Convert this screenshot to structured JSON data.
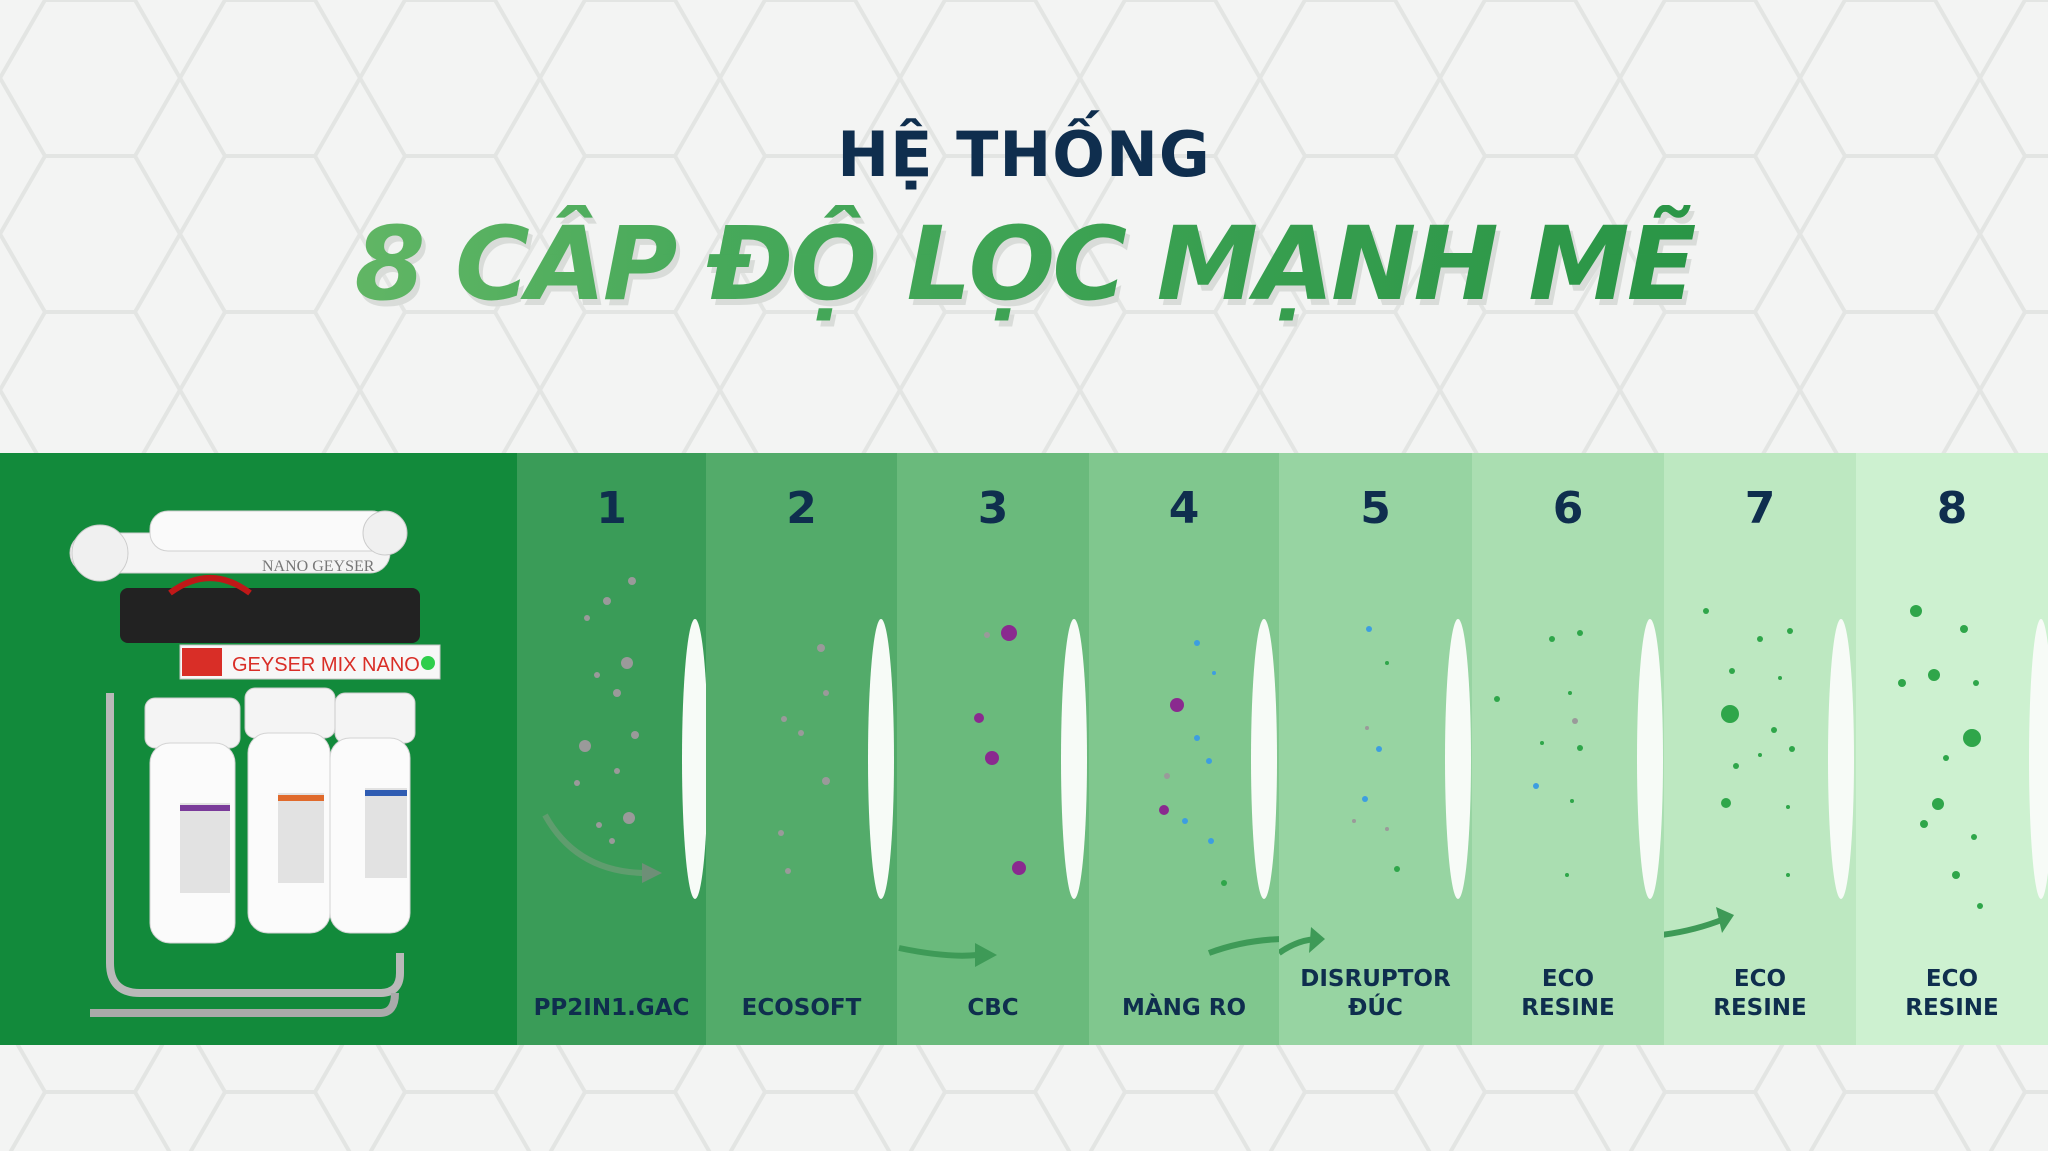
{
  "heading": {
    "line1": "HỆ THỐNG",
    "line2": "8 CẤP ĐỘ LỌC MẠNH MẼ"
  },
  "product": {
    "brand_label": "GEYSER MIX NANO",
    "top_label": "NANO GEYSER"
  },
  "stages": [
    {
      "number": "1",
      "label_lines": [
        "PP2IN1.GAC"
      ],
      "color": "#3a9c58"
    },
    {
      "number": "2",
      "label_lines": [
        "ECOSOFT"
      ],
      "color": "#53ab6a"
    },
    {
      "number": "3",
      "label_lines": [
        "CBC"
      ],
      "color": "#6aba7c"
    },
    {
      "number": "4",
      "label_lines": [
        "MÀNG RO"
      ],
      "color": "#80c78e"
    },
    {
      "number": "5",
      "label_lines": [
        "DISRUPTOR",
        "ĐÚC"
      ],
      "color": "#97d4a2"
    },
    {
      "number": "6",
      "label_lines": [
        "ECO",
        "RESINE"
      ],
      "color": "#aadeb1"
    },
    {
      "number": "7",
      "label_lines": [
        "ECO",
        "RESINE"
      ],
      "color": "#bde8c1"
    },
    {
      "number": "8",
      "label_lines": [
        "ECO",
        "RESINE"
      ],
      "color": "#cdf1d0"
    }
  ],
  "colors": {
    "navy_text": "#0f2e4e",
    "brand_green": "#128a3b",
    "particle_grey": "#8f8f8f",
    "particle_purple": "#8a2a8f",
    "particle_blue": "#3d9ee0",
    "particle_green": "#2fa64a"
  }
}
